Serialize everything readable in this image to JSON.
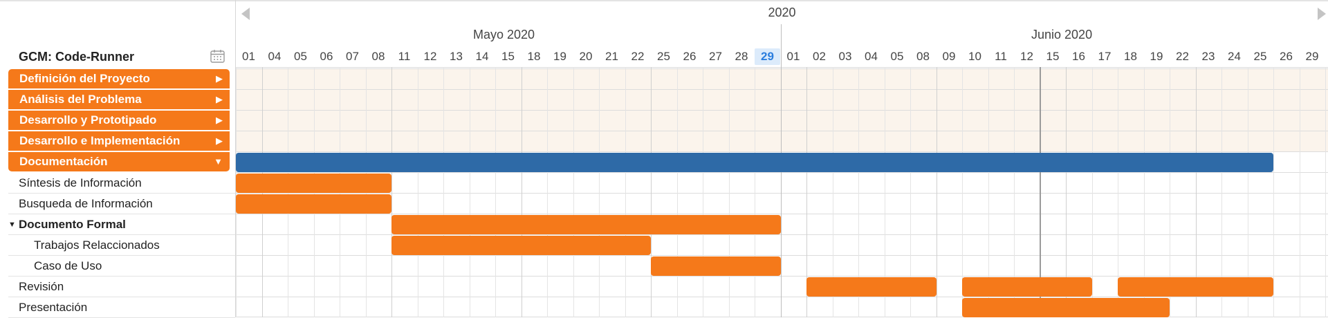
{
  "project": {
    "name": "GCM: Code-Runner"
  },
  "header": {
    "year": "2020",
    "months": [
      {
        "label": "Mayo 2020"
      },
      {
        "label": "Junio 2020"
      }
    ],
    "days": [
      "01",
      "04",
      "05",
      "06",
      "07",
      "08",
      "11",
      "12",
      "13",
      "14",
      "15",
      "18",
      "19",
      "20",
      "21",
      "22",
      "25",
      "26",
      "27",
      "28",
      "29",
      "01",
      "02",
      "03",
      "04",
      "05",
      "08",
      "09",
      "10",
      "11",
      "12",
      "15",
      "16",
      "17",
      "18",
      "19",
      "22",
      "23",
      "24",
      "25",
      "26",
      "29"
    ],
    "today_label": "29"
  },
  "groups": [
    {
      "label": "Definición del Proyecto",
      "expanded": false
    },
    {
      "label": "Análisis del Problema",
      "expanded": false
    },
    {
      "label": "Desarrollo y Prototipado",
      "expanded": false
    },
    {
      "label": "Desarrollo e Implementación",
      "expanded": false
    },
    {
      "label": "Documentación",
      "expanded": true
    }
  ],
  "tasks": [
    {
      "label": "Síntesis de Información",
      "start": "01/05",
      "end": "08/05"
    },
    {
      "label": "Busqueda de Información",
      "start": "01/05",
      "end": "08/05"
    },
    {
      "label": "Documento Formal",
      "start": "11/05",
      "end": "29/05"
    },
    {
      "label": "Trabajos Relaccionados",
      "start": "11/05",
      "end": "22/05"
    },
    {
      "label": "Caso de Uso",
      "start": "25/05",
      "end": "29/05"
    },
    {
      "label": "Revisión",
      "segments": [
        [
          "02/06",
          "08/06"
        ],
        [
          "10/06",
          "16/06"
        ],
        [
          "18/06",
          "25/06"
        ]
      ]
    },
    {
      "label": "Presentación",
      "start": "10/06",
      "end": "19/06"
    }
  ],
  "colors": {
    "task": "#f5791a",
    "summary": "#2e6aa7",
    "today": "#2a7dde"
  },
  "icons": {
    "calendar": "calendar-icon",
    "prev": "chevron-left-icon",
    "next": "chevron-right-icon"
  }
}
